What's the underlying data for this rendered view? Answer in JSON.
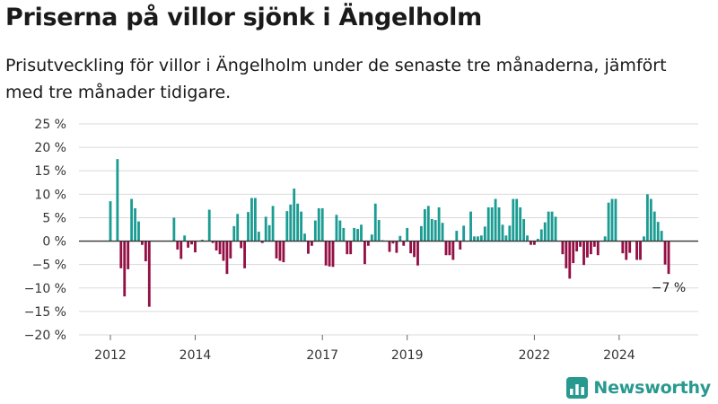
{
  "title": "Priserna på villor sjönk i Ängelholm",
  "subtitle": "Prisutveckling för villor i Ängelholm under de senaste tre månaderna, jämfört med tre månader tidigare.",
  "brand": "Newsworthy",
  "colors": {
    "positive": "#1a9c92",
    "negative": "#930f45",
    "grid": "#d9d9d9",
    "zero": "#333333",
    "brand": "#27998f"
  },
  "chart_data": {
    "type": "bar",
    "x_start": "2012-01",
    "x_end": "2024-09",
    "values": [
      8.5,
      null,
      17.5,
      -5.8,
      -11.8,
      -6,
      9,
      7,
      4.2,
      -0.8,
      -4.3,
      -14,
      null,
      null,
      null,
      null,
      null,
      null,
      5,
      -1.8,
      -3.8,
      1.2,
      -1.4,
      -0.7,
      -2.4,
      null,
      0.3,
      null,
      6.7,
      -0.4,
      -2,
      -2.8,
      -4.2,
      -7,
      -3.7,
      3.2,
      5.8,
      -1.5,
      -5.8,
      6.2,
      9.2,
      9.2,
      2,
      -0.4,
      5.2,
      3.4,
      7.5,
      -3.7,
      -4.2,
      -4.5,
      6.4,
      7.8,
      11.2,
      8,
      6.3,
      1.6,
      -2.7,
      -1,
      4.4,
      7,
      7,
      -5.2,
      -5.4,
      -5.5,
      5.6,
      4.4,
      2.8,
      -2.8,
      -2.8,
      2.8,
      2.6,
      3.5,
      -4.9,
      -1,
      1.4,
      8,
      4.5,
      0.2,
      null,
      -2.3,
      -0.5,
      -2.5,
      1.1,
      -1,
      2.8,
      -2.6,
      -3.4,
      -5.2,
      3.2,
      6.8,
      7.5,
      4.7,
      4.5,
      7.2,
      3.9,
      -3,
      -3,
      -4,
      2.2,
      -1.8,
      3.3,
      null,
      6.3,
      1,
      1,
      1.2,
      3.1,
      7.2,
      7.2,
      9,
      7.2,
      3.5,
      1.2,
      3.3,
      9,
      9,
      7.2,
      4.7,
      1.2,
      -0.8,
      -0.8,
      0.5,
      2.5,
      4,
      6.3,
      6.3,
      5.2,
      null,
      -2.8,
      -5.8,
      -8,
      -4.7,
      -2.2,
      -1.2,
      -5.1,
      -3.5,
      -2.8,
      -1.2,
      -3,
      null,
      1,
      8.2,
      9,
      9,
      null,
      -2.6,
      -4,
      -2.5,
      null,
      -4,
      -4,
      1,
      10,
      9,
      6.3,
      4.1,
      2.2,
      -5,
      -7
    ],
    "annotation": "−7 %",
    "y_ticks": [
      "25 %",
      "20 %",
      "15 %",
      "10 %",
      "5 %",
      "0 %",
      "−5 %",
      "−10 %",
      "−15 %",
      "−20 %"
    ],
    "y_tick_values": [
      25,
      20,
      15,
      10,
      5,
      0,
      -5,
      -10,
      -15,
      -20
    ],
    "x_ticks": [
      "2012",
      "2014",
      "2017",
      "2019",
      "2022",
      "2024"
    ],
    "ylim": [
      -20,
      25
    ],
    "grid": true
  }
}
